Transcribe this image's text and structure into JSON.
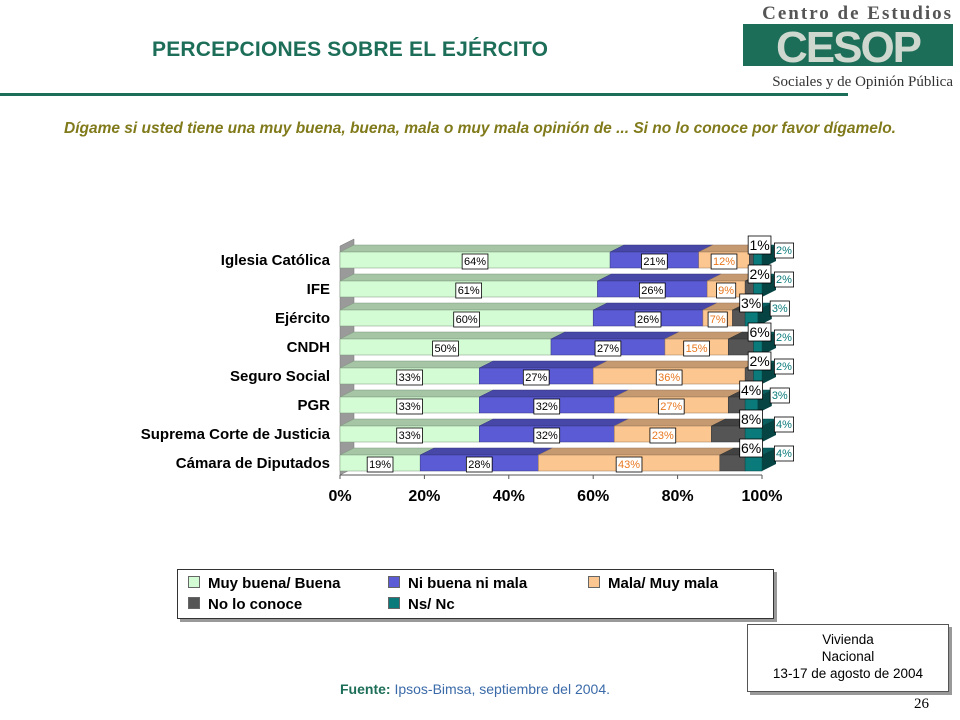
{
  "title": "PERCEPCIONES SOBRE EL EJÉRCITO",
  "logo": {
    "top_text": "Centro de Estudios",
    "mark_text": "CESOP",
    "bottom_text": "Sociales y de Opinión Pública"
  },
  "question": "Dígame si usted tiene una muy buena, buena, mala o muy mala opinión de ... Si  no lo conoce por favor dígamelo.",
  "chart_data": {
    "type": "bar",
    "orientation": "horizontal",
    "stacked": true,
    "percent_stacked": true,
    "style": "3d",
    "categories": [
      "Iglesia Católica",
      "IFE",
      "Ejército",
      "CNDH",
      "Seguro Social",
      "PGR",
      "Suprema Corte de Justicia",
      "Cámara de Diputados"
    ],
    "series": [
      {
        "name": "Muy buena/ Buena",
        "values": [
          64,
          61,
          60,
          50,
          33,
          33,
          33,
          19
        ],
        "labels": [
          "64%",
          "61%",
          "60%",
          "50%",
          "33%",
          "33%",
          "33%",
          "19%"
        ],
        "color": "#d4fcd4"
      },
      {
        "name": "Ni buena ni mala",
        "values": [
          21,
          26,
          26,
          27,
          27,
          32,
          32,
          28
        ],
        "labels": [
          "21%",
          "26%",
          "26%",
          "27%",
          "27%",
          "32%",
          "32%",
          "28%"
        ],
        "color": "#5b5bd6"
      },
      {
        "name": "Mala/ Muy mala",
        "values": [
          12,
          9,
          7,
          15,
          36,
          27,
          23,
          43
        ],
        "labels": [
          "12%",
          "9%",
          "7%",
          "15%",
          "36%",
          "27%",
          "23%",
          "43%"
        ],
        "color": "#fcc690"
      },
      {
        "name": "No lo conoce",
        "values": [
          1,
          2,
          3,
          6,
          2,
          4,
          8,
          6
        ],
        "labels": [
          "1%",
          "2%",
          "3%",
          "6%",
          "2%",
          "4%",
          "8%",
          "6%"
        ],
        "color": "#555555"
      },
      {
        "name": "Ns/ Nc",
        "values": [
          2,
          2,
          3,
          2,
          2,
          3,
          4,
          4
        ],
        "labels": [
          "2%",
          "2%",
          "3%",
          "2%",
          "2%",
          "3%",
          "4%",
          "4%"
        ],
        "color": "#0b7a7a"
      }
    ],
    "x_ticks": [
      "0%",
      "20%",
      "40%",
      "60%",
      "80%",
      "100%"
    ],
    "xlim": [
      0,
      100
    ],
    "legend_position": "bottom",
    "grid": false,
    "label_colors": {
      "Muy buena/ Buena": "#000000",
      "Ni buena ni mala": "#000000",
      "Mala/ Muy mala": "#e8771e",
      "No lo conoce": "#000000",
      "Ns/ Nc": "#0b7a7a"
    }
  },
  "legend": {
    "items": [
      {
        "label": "Muy buena/ Buena",
        "color": "#d4fcd4"
      },
      {
        "label": "Ni buena ni mala",
        "color": "#5b5bd6"
      },
      {
        "label": "Mala/ Muy mala",
        "color": "#fcc690"
      },
      {
        "label": "No lo conoce",
        "color": "#555555"
      },
      {
        "label": "Ns/ Nc",
        "color": "#0b7a7a"
      }
    ]
  },
  "source": {
    "label": "Fuente:",
    "text": " Ipsos-Bimsa, septiembre del 2004."
  },
  "fieldwork": {
    "line1": "Vivienda",
    "line2": "Nacional",
    "line3": "13-17 de agosto de 2004"
  },
  "page_number": "26",
  "colors": {
    "title": "#1d6e58",
    "question": "#807a1a",
    "source": "#3a6aa8"
  }
}
